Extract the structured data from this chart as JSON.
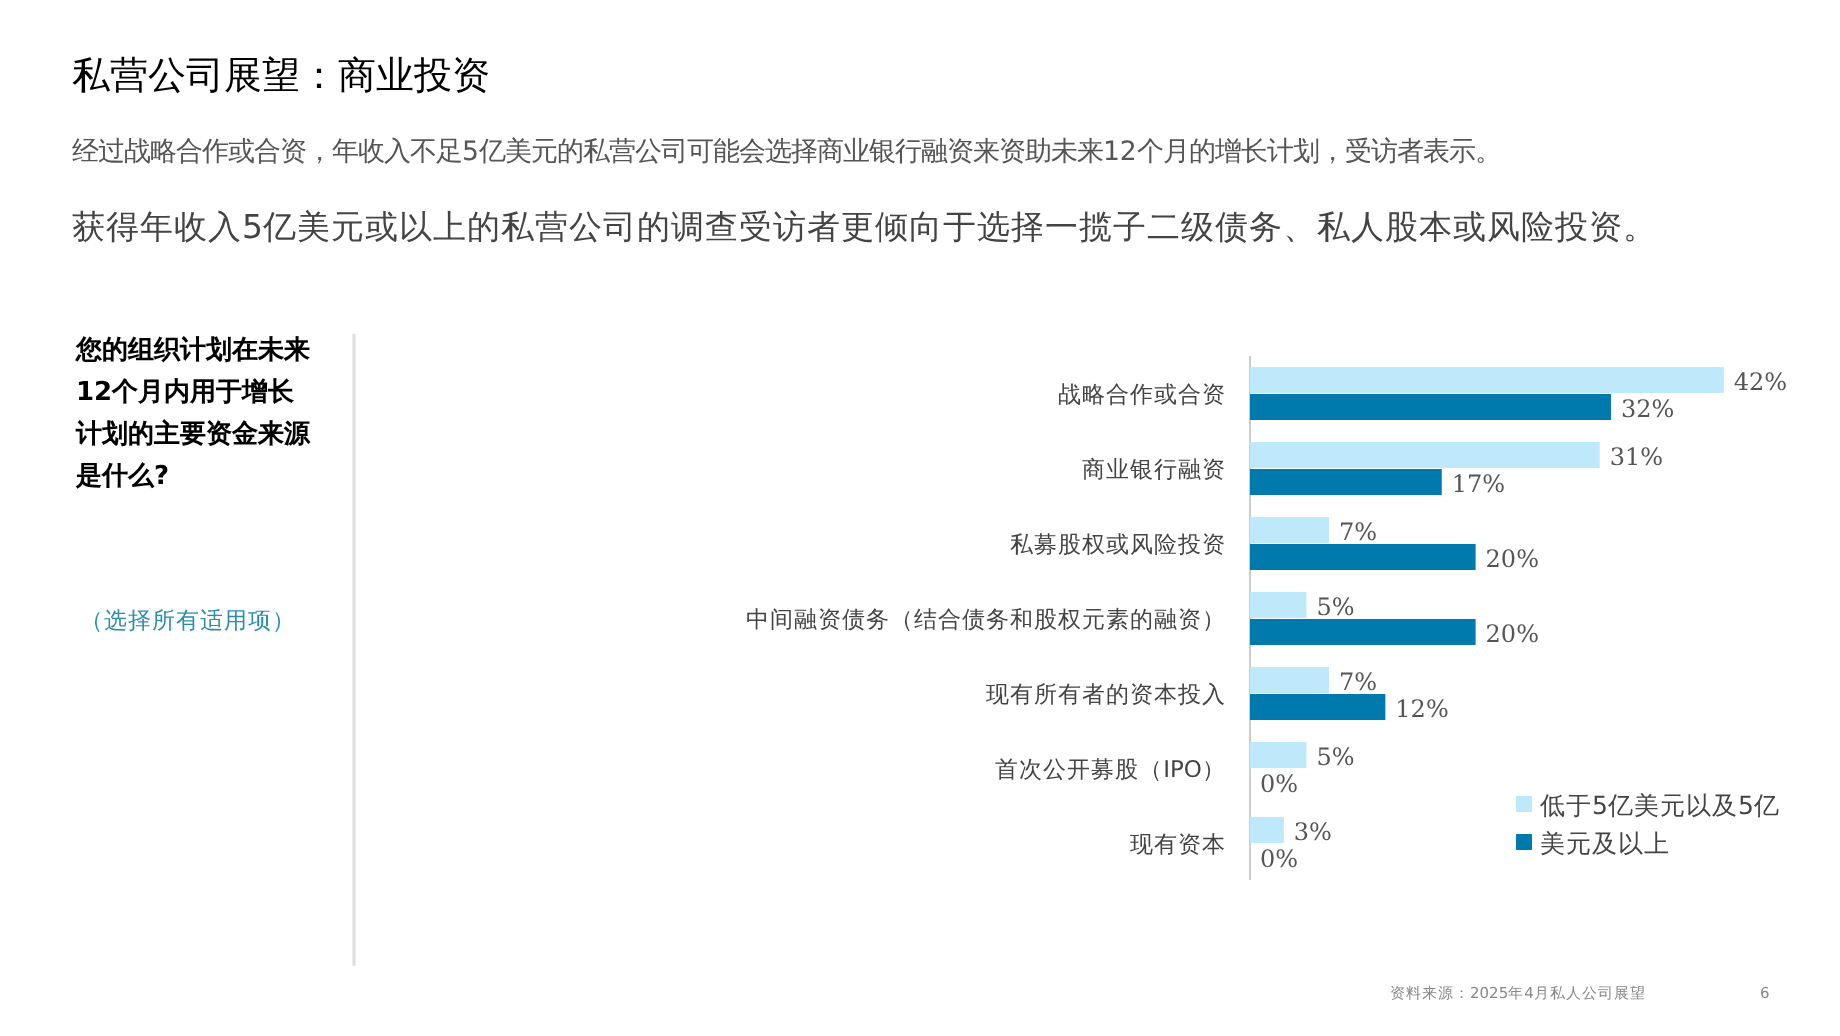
{
  "chart_data": {
    "type": "bar",
    "orientation": "horizontal",
    "title": "私营公司展望：商业投资",
    "subtitle": "经过战略合作或合资，年收入不足5亿美元的私营公司可能会选择商业银行融资来资助未来12个月的增长计划，受访者表示。",
    "categories": [
      "战略合作或合资",
      "商业银行融资",
      "私募股权或风险投资",
      "中间融资债务（结合债务和股权元素的融资）",
      "现有所有者的资本投入",
      "首次公开募股（IPO）",
      "现有资本"
    ],
    "series": [
      {
        "name": "低于5亿美元以及5亿",
        "color": "#bde9fb",
        "values": [
          42,
          31,
          7,
          5,
          7,
          5,
          3
        ],
        "value_labels": [
          "42%",
          "31%",
          "7%",
          "5%",
          "7%",
          "5%",
          "3%"
        ]
      },
      {
        "name": "美元及以上",
        "color": "#0079ad",
        "values": [
          32,
          17,
          20,
          20,
          12,
          0,
          0
        ],
        "value_labels": [
          "32%",
          "17%",
          "20%",
          "20%",
          "12%",
          "0%",
          "0%"
        ]
      }
    ],
    "legend": "bottom right",
    "annotations": [
      "获得年收入5亿美元或以上的私营公司的调查受访者更倾向于选择一揽子二级债务、私人股本或风险投资。",
      "您的组织计划在未来12个月内用于增长计划的主要资金来源是什么?",
      "（选择所有适用项）",
      "资料来源：2025年4月私人公司展望",
      "6"
    ]
  }
}
